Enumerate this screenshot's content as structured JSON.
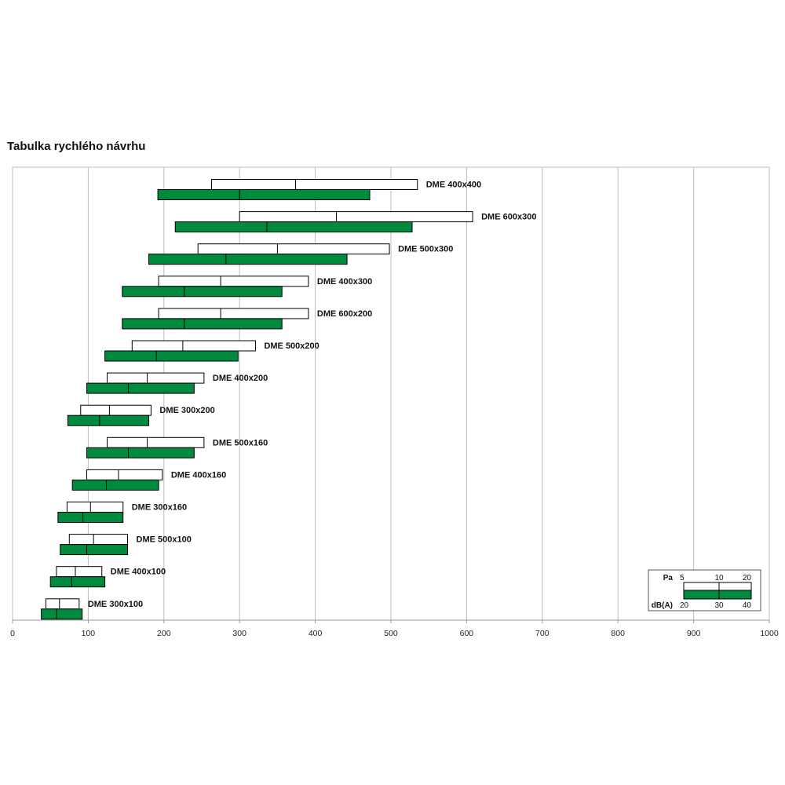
{
  "title": "Tabulka rychlého návrhu",
  "chart_data": {
    "type": "bar",
    "subtype": "floating-range",
    "xlim": [
      0,
      1000
    ],
    "x_ticks": [
      0,
      100,
      200,
      300,
      400,
      500,
      600,
      700,
      800,
      900,
      1000
    ],
    "x_tick_labels": [
      "0",
      "100",
      "200",
      "300",
      "400",
      "500",
      "600",
      "700",
      "800",
      "900",
      "1000"
    ],
    "grid": "vertical",
    "colors": {
      "pressure_bar": "#ffffff",
      "noise_bar": "#008a3e",
      "outline": "#000000"
    },
    "series": [
      {
        "name": "DME 400x400",
        "pa": [
          263,
          374,
          535
        ],
        "dba": [
          192,
          300,
          472
        ]
      },
      {
        "name": "DME 600x300",
        "pa": [
          300,
          428,
          608
        ],
        "dba": [
          215,
          336,
          528
        ]
      },
      {
        "name": "DME 500x300",
        "pa": [
          245,
          350,
          498
        ],
        "dba": [
          180,
          282,
          442
        ]
      },
      {
        "name": "DME 400x300",
        "pa": [
          193,
          275,
          391
        ],
        "dba": [
          145,
          227,
          356
        ]
      },
      {
        "name": "DME 600x200",
        "pa": [
          193,
          275,
          391
        ],
        "dba": [
          145,
          227,
          356
        ]
      },
      {
        "name": "DME 500x200",
        "pa": [
          158,
          225,
          321
        ],
        "dba": [
          122,
          190,
          298
        ]
      },
      {
        "name": "DME 400x200",
        "pa": [
          125,
          178,
          253
        ],
        "dba": [
          98,
          153,
          240
        ]
      },
      {
        "name": "DME 300x200",
        "pa": [
          90,
          128,
          183
        ],
        "dba": [
          73,
          115,
          180
        ]
      },
      {
        "name": "DME 500x160",
        "pa": [
          125,
          178,
          253
        ],
        "dba": [
          98,
          153,
          240
        ]
      },
      {
        "name": "DME 400x160",
        "pa": [
          98,
          140,
          198
        ],
        "dba": [
          79,
          124,
          193
        ]
      },
      {
        "name": "DME 300x160",
        "pa": [
          72,
          103,
          146
        ],
        "dba": [
          60,
          93,
          146
        ]
      },
      {
        "name": "DME 500x100",
        "pa": [
          75,
          107,
          152
        ],
        "dba": [
          63,
          98,
          152
        ]
      },
      {
        "name": "DME 400x100",
        "pa": [
          58,
          83,
          118
        ],
        "dba": [
          50,
          78,
          122
        ]
      },
      {
        "name": "DME 300x100",
        "pa": [
          44,
          62,
          88
        ],
        "dba": [
          38,
          58,
          92
        ]
      }
    ],
    "legend": {
      "placement": "bottom-right",
      "pa_label": "Pa",
      "pa_values": [
        "5",
        "10",
        "20"
      ],
      "dba_label": "dB(A)",
      "dba_values": [
        "20",
        "30",
        "40"
      ]
    }
  }
}
